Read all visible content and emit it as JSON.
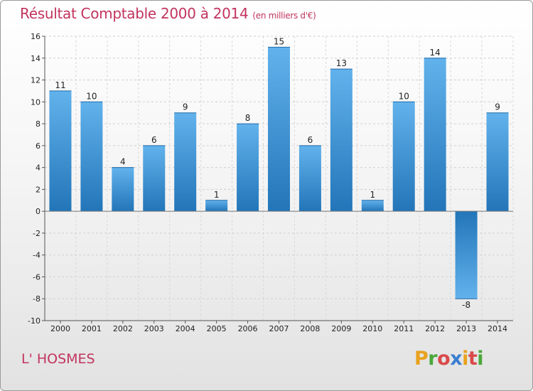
{
  "header": {
    "title": "Résultat Comptable 2000 à 2014",
    "subtitle": "(en milliers d'€)"
  },
  "footer": {
    "commune": "L' HOSMES",
    "logo_letters": [
      "P",
      "r",
      "o",
      "x",
      "i",
      "t",
      "i"
    ],
    "logo_colors": [
      "#e8a21d",
      "#49a83a",
      "#d94a4a",
      "#3a7fcf",
      "#e8a21d",
      "#d94a4a",
      "#49a83a"
    ]
  },
  "colors": {
    "bar_light": "#62b2ec",
    "bar_dark": "#2275b8",
    "title": "#c2345e"
  },
  "chart_data": {
    "type": "bar",
    "title": "Résultat Comptable 2000 à 2014",
    "xlabel": "",
    "ylabel": "",
    "ylim": [
      -10,
      16
    ],
    "yticks": [
      -10,
      -8,
      -6,
      -4,
      -2,
      0,
      2,
      4,
      6,
      8,
      10,
      12,
      14,
      16
    ],
    "categories": [
      "2000",
      "2001",
      "2002",
      "2003",
      "2004",
      "2005",
      "2006",
      "2007",
      "2008",
      "2009",
      "2010",
      "2011",
      "2012",
      "2013",
      "2014"
    ],
    "values": [
      11,
      10,
      4,
      6,
      9,
      1,
      8,
      15,
      6,
      13,
      1,
      10,
      14,
      -8,
      9
    ],
    "grid": true
  }
}
